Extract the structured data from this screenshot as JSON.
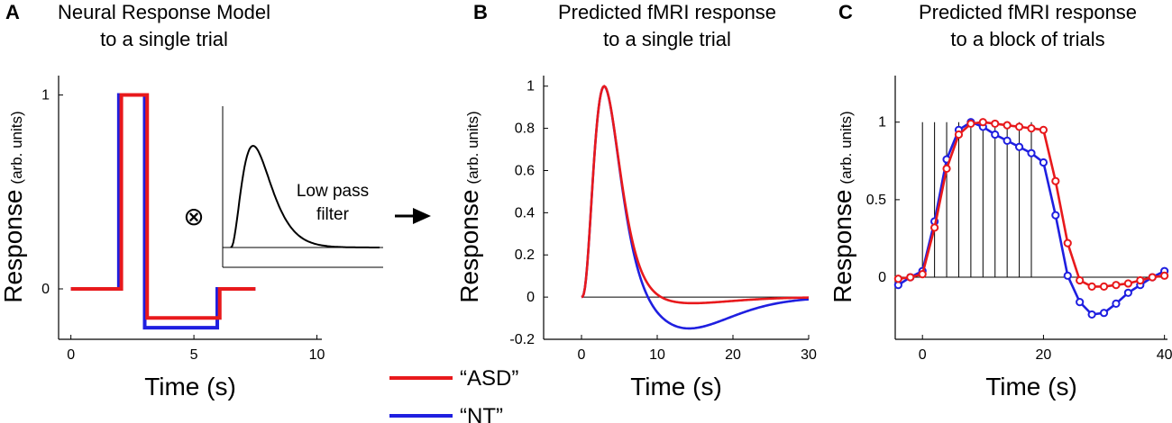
{
  "colors": {
    "asd": "#e8191c",
    "nt": "#1f1fe0",
    "axis": "#000000",
    "stim": "#000000"
  },
  "legend": {
    "asd": "“ASD”",
    "nt": "“NT”"
  },
  "chart_data": [
    {
      "panel": "A",
      "type": "line",
      "title": [
        "Neural Response Model",
        "to a single trial"
      ],
      "xlabel": "Time (s)",
      "ylabel": "Response",
      "ylabel_units": "(arb. units)",
      "xlim": [
        -0.5,
        10.2
      ],
      "ylim": [
        -0.26,
        1.1
      ],
      "xticks": [
        0,
        5,
        10
      ],
      "yticks": [
        0,
        1
      ],
      "series": [
        {
          "name": "“ASD”",
          "color": "asd",
          "x": [
            0,
            2.05,
            2.05,
            3.1,
            3.1,
            6.05,
            6.05,
            7.5
          ],
          "y": [
            0,
            0,
            1,
            1,
            -0.15,
            -0.15,
            0,
            0
          ]
        },
        {
          "name": "“NT”",
          "color": "nt",
          "x": [
            0,
            1.95,
            1.95,
            3.0,
            3.0,
            5.95,
            5.95,
            7.5
          ],
          "y": [
            0,
            0,
            1,
            1,
            -0.2,
            -0.2,
            0,
            0
          ]
        }
      ],
      "inset": {
        "label": [
          "Low pass",
          "filter"
        ],
        "operator": "⊗",
        "kernel": "hrf"
      }
    },
    {
      "panel": "B",
      "type": "line",
      "title": [
        "Predicted fMRI response",
        "to a single trial"
      ],
      "xlabel": "Time (s)",
      "ylabel": "Response",
      "ylabel_units": "(arb. units)",
      "xlim": [
        -5,
        30
      ],
      "ylim": [
        -0.2,
        1.05
      ],
      "xticks": [
        0,
        10,
        20,
        30
      ],
      "yticks": [
        -0.2,
        0,
        0.2,
        0.4,
        0.6,
        0.8,
        1
      ],
      "series": [
        {
          "name": "“ASD”",
          "color": "asd",
          "undershoot": 0.03
        },
        {
          "name": "“NT”",
          "color": "nt",
          "undershoot": 0.15
        }
      ]
    },
    {
      "panel": "C",
      "type": "line",
      "title": [
        "Predicted fMRI response",
        "to a block of trials"
      ],
      "xlabel": "Time (s)",
      "ylabel": "Response",
      "ylabel_units": "(arb. units)",
      "xlim": [
        -4.5,
        40.5
      ],
      "ylim": [
        -0.4,
        1.3
      ],
      "xticks": [
        0,
        20,
        40
      ],
      "yticks": [
        0,
        0.5,
        1
      ],
      "stimulus_times": [
        0,
        2,
        4,
        6,
        8,
        10,
        12,
        14,
        16,
        18
      ],
      "stimulus_height": 1.0,
      "series": [
        {
          "name": "“ASD”",
          "color": "asd",
          "x": [
            -4,
            -2,
            0,
            2,
            4,
            6,
            8,
            10,
            12,
            14,
            16,
            18,
            20,
            22,
            24,
            26,
            28,
            30,
            32,
            34,
            36,
            38,
            40
          ],
          "y": [
            -0.01,
            0,
            0.02,
            0.32,
            0.7,
            0.92,
            0.99,
            1.0,
            0.99,
            0.98,
            0.97,
            0.96,
            0.95,
            0.62,
            0.22,
            -0.02,
            -0.06,
            -0.06,
            -0.05,
            -0.04,
            -0.02,
            0.0,
            0.01
          ]
        },
        {
          "name": "“NT”",
          "color": "nt",
          "x": [
            -4,
            -2,
            0,
            2,
            4,
            6,
            8,
            10,
            12,
            14,
            16,
            18,
            20,
            22,
            24,
            26,
            28,
            30,
            32,
            34,
            36,
            38,
            40
          ],
          "y": [
            -0.05,
            0,
            0.04,
            0.36,
            0.76,
            0.95,
            1.0,
            0.97,
            0.92,
            0.88,
            0.84,
            0.8,
            0.74,
            0.4,
            0.01,
            -0.16,
            -0.24,
            -0.23,
            -0.17,
            -0.1,
            -0.05,
            0.0,
            0.04
          ]
        }
      ]
    }
  ]
}
